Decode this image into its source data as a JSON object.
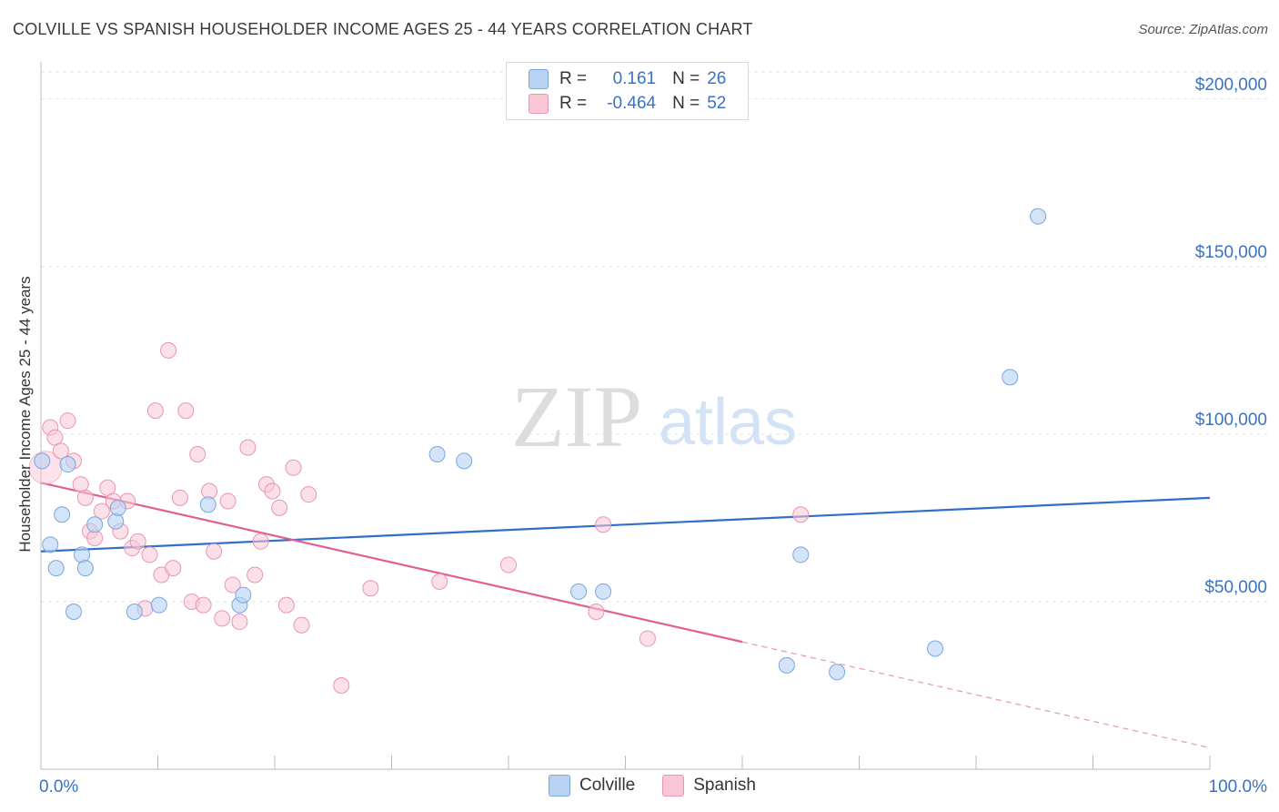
{
  "header": {
    "title": "COLVILLE VS SPANISH HOUSEHOLDER INCOME AGES 25 - 44 YEARS CORRELATION CHART",
    "source": "Source: ZipAtlas.com"
  },
  "watermark": {
    "zip": "ZIP",
    "atlas": "atlas"
  },
  "legend": {
    "rows": [
      {
        "r_label": "R =",
        "r_value": "0.161",
        "n_label": "N =",
        "n_value": "26",
        "color": "#b8d2f3",
        "border": "#7aa6dc"
      },
      {
        "r_label": "R =",
        "r_value": "-0.464",
        "n_label": "N =",
        "n_value": "52",
        "color": "#f9c6d6",
        "border": "#e995b0"
      }
    ]
  },
  "bottom_legend": {
    "items": [
      "Colville",
      "Spanish"
    ]
  },
  "chart_data": {
    "type": "scatter",
    "title": "COLVILLE VS SPANISH HOUSEHOLDER INCOME AGES 25 - 44 YEARS CORRELATION CHART",
    "xlabel": "",
    "ylabel": "Householder Income Ages 25 - 44 years",
    "xlim": [
      0,
      100
    ],
    "ylim": [
      0,
      210000
    ],
    "x_tick_labels": [
      "0.0%",
      "100.0%"
    ],
    "y_ticks": [
      50000,
      100000,
      150000,
      200000
    ],
    "y_tick_labels": [
      "$50,000",
      "$100,000",
      "$150,000",
      "$200,000"
    ],
    "grid": true,
    "colors": {
      "Colville": "#3a72c4",
      "Spanish": "#e06090",
      "tick_text": "#3a72c4"
    },
    "series": [
      {
        "name": "Colville",
        "points": [
          [
            0.1,
            92000
          ],
          [
            0.8,
            67000
          ],
          [
            1.3,
            60000
          ],
          [
            1.8,
            76000
          ],
          [
            2.3,
            91000
          ],
          [
            2.8,
            47000
          ],
          [
            3.5,
            64000
          ],
          [
            3.8,
            60000
          ],
          [
            4.6,
            73000
          ],
          [
            6.4,
            74000
          ],
          [
            6.6,
            78000
          ],
          [
            8.0,
            47000
          ],
          [
            10.1,
            49000
          ],
          [
            14.3,
            79000
          ],
          [
            17.0,
            49000
          ],
          [
            17.3,
            52000
          ],
          [
            33.9,
            94000
          ],
          [
            36.2,
            92000
          ],
          [
            46.0,
            53000
          ],
          [
            48.1,
            53000
          ],
          [
            63.8,
            31000
          ],
          [
            65.0,
            64000
          ],
          [
            68.1,
            29000
          ],
          [
            76.5,
            36000
          ],
          [
            82.9,
            117000
          ],
          [
            85.3,
            165000
          ]
        ],
        "trend": {
          "x": [
            0,
            100
          ],
          "y": [
            65000,
            81000
          ]
        }
      },
      {
        "name": "Spanish",
        "points": [
          [
            0.4,
            90000
          ],
          [
            0.8,
            102000
          ],
          [
            1.2,
            99000
          ],
          [
            1.7,
            95000
          ],
          [
            2.3,
            104000
          ],
          [
            2.8,
            92000
          ],
          [
            3.4,
            85000
          ],
          [
            3.8,
            81000
          ],
          [
            4.2,
            71000
          ],
          [
            4.6,
            69000
          ],
          [
            5.2,
            77000
          ],
          [
            5.7,
            84000
          ],
          [
            6.2,
            80000
          ],
          [
            6.8,
            71000
          ],
          [
            7.4,
            80000
          ],
          [
            7.8,
            66000
          ],
          [
            8.3,
            68000
          ],
          [
            8.9,
            48000
          ],
          [
            9.3,
            64000
          ],
          [
            9.8,
            107000
          ],
          [
            10.3,
            58000
          ],
          [
            10.9,
            125000
          ],
          [
            11.3,
            60000
          ],
          [
            11.9,
            81000
          ],
          [
            12.4,
            107000
          ],
          [
            12.9,
            50000
          ],
          [
            13.4,
            94000
          ],
          [
            13.9,
            49000
          ],
          [
            14.4,
            83000
          ],
          [
            14.8,
            65000
          ],
          [
            15.5,
            45000
          ],
          [
            16.0,
            80000
          ],
          [
            16.4,
            55000
          ],
          [
            17.0,
            44000
          ],
          [
            17.7,
            96000
          ],
          [
            18.3,
            58000
          ],
          [
            18.8,
            68000
          ],
          [
            19.3,
            85000
          ],
          [
            19.8,
            83000
          ],
          [
            20.4,
            78000
          ],
          [
            21.0,
            49000
          ],
          [
            21.6,
            90000
          ],
          [
            22.3,
            43000
          ],
          [
            22.9,
            82000
          ],
          [
            25.7,
            25000
          ],
          [
            28.2,
            54000
          ],
          [
            34.1,
            56000
          ],
          [
            40.0,
            61000
          ],
          [
            47.5,
            47000
          ],
          [
            48.1,
            73000
          ],
          [
            51.9,
            39000
          ],
          [
            65.0,
            76000
          ]
        ],
        "trend": {
          "x": [
            0,
            60
          ],
          "y": [
            85500,
            38000
          ]
        },
        "trend_dashed": {
          "x": [
            60,
            100
          ],
          "y": [
            38000,
            6400
          ]
        }
      }
    ]
  }
}
